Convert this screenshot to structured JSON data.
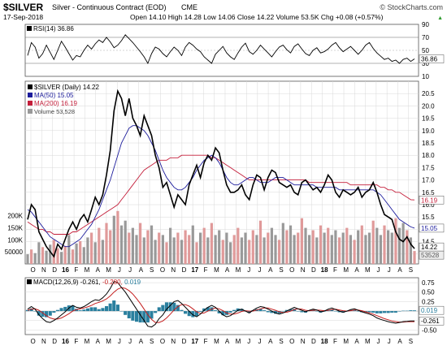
{
  "header": {
    "symbol": "$SILVER",
    "name": "Silver - Continuous Contract (EOD)",
    "exchange": "CME",
    "brand": "© StockCharts.com",
    "date": "17-Sep-2018",
    "ohlc": "Open 14.10  High 14.28  Low 14.06  Close 14.22  Volume 53.5K  Chg +0.08 (+0.57%)",
    "chg_arrow": "▲"
  },
  "colors": {
    "price": "#000000",
    "ma50": "#1c1c9c",
    "ma200": "#c41e3a",
    "macd": "#000000",
    "signal": "#c41e1e",
    "histogram": "#2a7f9e",
    "volume_up": "#e09a9a",
    "volume_down": "#999999",
    "grid": "#d8d8d8"
  },
  "chart_data": [
    {
      "type": "line",
      "panel": "RSI",
      "legend": "RSI(14) 36.86",
      "last_value": 36.86,
      "ylim": [
        10,
        90
      ],
      "levels": [
        30,
        50,
        70
      ],
      "tick_labels": [
        "90",
        "70",
        "50",
        "30",
        "10"
      ],
      "tick_values": [
        90,
        70,
        50,
        30,
        10
      ],
      "values": [
        42,
        62,
        55,
        38,
        45,
        58,
        47,
        36,
        50,
        64,
        55,
        45,
        35,
        42,
        40,
        50,
        58,
        52,
        60,
        66,
        62,
        70,
        63,
        54,
        58,
        65,
        74,
        68,
        62,
        55,
        48,
        40,
        30,
        45,
        55,
        52,
        45,
        40,
        48,
        55,
        50,
        42,
        55,
        62,
        58,
        52,
        48,
        40,
        35,
        30,
        44,
        50,
        56,
        46,
        40,
        36,
        46,
        55,
        61,
        48,
        44,
        50,
        58,
        52,
        46,
        40,
        48,
        55,
        58,
        51,
        46,
        56,
        60,
        52,
        45,
        42,
        50,
        54,
        46,
        48,
        52,
        58,
        62,
        54,
        48,
        52,
        56,
        50,
        44,
        50,
        58,
        62,
        53,
        46,
        41,
        36,
        38,
        33,
        35,
        30,
        36,
        38,
        33,
        36.86
      ]
    },
    {
      "type": "line",
      "panel": "Price",
      "legend": [
        "$SILVER (Daily) 14.22",
        "MA(50) 15.05",
        "MA(200) 16.19",
        "Volume 53,528"
      ],
      "ylim": [
        13.6,
        21.0
      ],
      "y_ticks": [
        14.0,
        14.5,
        15.0,
        15.5,
        16.0,
        16.5,
        17.0,
        17.5,
        18.0,
        18.5,
        19.0,
        19.5,
        20.0,
        20.5
      ],
      "y_tick_labels": [
        "14.0",
        "14.5",
        "15.0",
        "15.5",
        "16.0",
        "16.5",
        "17.0",
        "17.5",
        "18.0",
        "18.5",
        "19.0",
        "19.5",
        "20.0",
        "20.5"
      ],
      "volume_ticks": [
        "200K",
        "150K",
        "100K",
        "50000"
      ],
      "volume_tick_values": [
        200000,
        150000,
        100000,
        50000
      ],
      "volume_max": 270000,
      "last_labels": {
        "ma200": "16.19",
        "ma50": "15.05",
        "close": "14.22",
        "volume": "53528"
      },
      "x_labels": [
        "O",
        "N",
        "D",
        "16",
        "F",
        "M",
        "A",
        "M",
        "J",
        "J",
        "A",
        "S",
        "O",
        "N",
        "D",
        "17",
        "F",
        "M",
        "A",
        "M",
        "J",
        "J",
        "A",
        "S",
        "O",
        "N",
        "D",
        "18",
        "F",
        "M",
        "A",
        "M",
        "J",
        "J",
        "A",
        "S"
      ],
      "x_label_bold": [
        "16",
        "17",
        "18"
      ],
      "series": [
        {
          "name": "$SILVER (Daily)",
          "values": [
            15.4,
            16.0,
            15.8,
            14.9,
            14.6,
            14.3,
            14.1,
            13.9,
            14.4,
            14.2,
            14.6,
            15.0,
            15.3,
            15.0,
            15.4,
            15.6,
            15.3,
            15.8,
            16.3,
            16.0,
            16.4,
            17.2,
            18.2,
            19.8,
            20.6,
            20.3,
            19.6,
            20.3,
            19.5,
            19.2,
            18.8,
            19.6,
            19.2,
            18.8,
            18.0,
            17.5,
            16.7,
            16.9,
            16.4,
            15.9,
            16.4,
            16.2,
            16.0,
            16.8,
            17.2,
            17.6,
            17.1,
            17.7,
            18.0,
            17.8,
            18.3,
            18.1,
            17.4,
            16.8,
            16.5,
            16.5,
            16.6,
            16.8,
            16.4,
            16.2,
            16.8,
            17.2,
            17.1,
            16.6,
            17.1,
            17.4,
            17.3,
            16.9,
            16.8,
            16.7,
            16.8,
            16.5,
            16.4,
            16.9,
            17.0,
            16.8,
            16.6,
            16.7,
            16.5,
            16.8,
            17.2,
            17.0,
            16.5,
            16.3,
            16.6,
            16.5,
            16.4,
            16.5,
            16.7,
            16.3,
            16.5,
            16.6,
            16.9,
            16.5,
            16.0,
            15.6,
            15.5,
            15.4,
            14.9,
            14.6,
            14.5,
            14.7,
            14.4,
            14.22
          ]
        },
        {
          "name": "MA(50)",
          "values": [
            15.8,
            15.7,
            15.5,
            15.3,
            15.1,
            14.9,
            14.7,
            14.6,
            14.5,
            14.4,
            14.3,
            14.3,
            14.4,
            14.5,
            14.6,
            14.8,
            15.0,
            15.2,
            15.5,
            15.8,
            16.2,
            16.6,
            17.0,
            17.5,
            18.0,
            18.5,
            18.8,
            19.1,
            19.2,
            19.2,
            19.1,
            19.0,
            18.8,
            18.5,
            18.2,
            17.8,
            17.4,
            17.1,
            16.9,
            16.7,
            16.6,
            16.6,
            16.7,
            16.9,
            17.1,
            17.4,
            17.6,
            17.8,
            17.9,
            18.0,
            17.9,
            17.7,
            17.4,
            17.1,
            16.9,
            16.8,
            16.8,
            16.9,
            17.0,
            17.1,
            17.1,
            17.0,
            16.9,
            16.9,
            16.9,
            17.0,
            17.1,
            17.1,
            17.1,
            17.0,
            16.9,
            16.8,
            16.8,
            16.8,
            16.8,
            16.8,
            16.8,
            16.7,
            16.7,
            16.7,
            16.7,
            16.7,
            16.7,
            16.6,
            16.6,
            16.6,
            16.6,
            16.6,
            16.6,
            16.6,
            16.6,
            16.6,
            16.6,
            16.5,
            16.4,
            16.2,
            16.0,
            15.8,
            15.6,
            15.4,
            15.3,
            15.2,
            15.1,
            15.05
          ]
        },
        {
          "name": "MA(200)",
          "values": [
            15.3,
            15.2,
            15.1,
            15.0,
            15.0,
            14.9,
            14.9,
            14.8,
            14.8,
            14.8,
            14.8,
            14.8,
            14.9,
            14.9,
            15.0,
            15.1,
            15.2,
            15.3,
            15.4,
            15.5,
            15.6,
            15.7,
            15.8,
            15.9,
            16.0,
            16.2,
            16.4,
            16.6,
            16.8,
            17.0,
            17.2,
            17.4,
            17.5,
            17.6,
            17.7,
            17.8,
            17.8,
            17.8,
            17.9,
            17.9,
            17.9,
            18.0,
            18.0,
            18.0,
            18.0,
            18.0,
            18.0,
            18.0,
            18.0,
            17.9,
            17.9,
            17.8,
            17.7,
            17.6,
            17.5,
            17.4,
            17.3,
            17.2,
            17.1,
            17.0,
            17.0,
            17.0,
            17.0,
            17.0,
            17.0,
            17.0,
            17.0,
            17.0,
            17.0,
            17.0,
            17.0,
            17.0,
            17.0,
            17.0,
            17.0,
            16.9,
            16.9,
            16.9,
            16.9,
            16.9,
            16.9,
            16.9,
            16.9,
            16.9,
            16.9,
            16.9,
            16.8,
            16.8,
            16.8,
            16.8,
            16.8,
            16.8,
            16.8,
            16.8,
            16.7,
            16.7,
            16.6,
            16.6,
            16.5,
            16.5,
            16.4,
            16.3,
            16.2,
            16.19
          ]
        }
      ],
      "volume": [
        40000,
        60000,
        45000,
        90000,
        70000,
        55000,
        80000,
        100000,
        65000,
        50000,
        75000,
        120000,
        60000,
        85000,
        95000,
        70000,
        110000,
        130000,
        90000,
        150000,
        100000,
        170000,
        140000,
        200000,
        220000,
        160000,
        180000,
        130000,
        150000,
        120000,
        170000,
        110000,
        140000,
        160000,
        100000,
        130000,
        120000,
        90000,
        150000,
        110000,
        130000,
        100000,
        140000,
        120000,
        160000,
        90000,
        130000,
        150000,
        110000,
        170000,
        120000,
        140000,
        100000,
        130000,
        90000,
        120000,
        150000,
        110000,
        130000,
        100000,
        140000,
        120000,
        180000,
        110000,
        130000,
        150000,
        120000,
        100000,
        170000,
        140000,
        160000,
        120000,
        130000,
        190000,
        150000,
        120000,
        140000,
        110000,
        160000,
        130000,
        150000,
        120000,
        140000,
        110000,
        130000,
        150000,
        120000,
        100000,
        140000,
        160000,
        120000,
        130000,
        180000,
        150000,
        120000,
        160000,
        140000,
        130000,
        190000,
        150000,
        170000,
        140000,
        110000,
        53528
      ],
      "volume_down": [
        1,
        0,
        1,
        1,
        0,
        1,
        1,
        0,
        0,
        1,
        0,
        1,
        0,
        1,
        0,
        1,
        1,
        0,
        1,
        0,
        1,
        0,
        0,
        1,
        0,
        1,
        1,
        0,
        1,
        1,
        0,
        1,
        0,
        1,
        1,
        0,
        1,
        0,
        1,
        1,
        0,
        1,
        0,
        0,
        1,
        0,
        1,
        0,
        1,
        0,
        1,
        1,
        0,
        1,
        1,
        0,
        0,
        1,
        1,
        0,
        0,
        1,
        0,
        1,
        0,
        1,
        1,
        0,
        1,
        0,
        1,
        1,
        0,
        0,
        1,
        1,
        0,
        1,
        0,
        1,
        0,
        1,
        1,
        0,
        1,
        0,
        1,
        0,
        1,
        0,
        1,
        1,
        0,
        1,
        1,
        0,
        1,
        1,
        0,
        1,
        1,
        0,
        1,
        0
      ]
    },
    {
      "type": "line",
      "panel": "MACD",
      "legend_prefix": "MACD(12,26,9) -0.261,",
      "legend_signal": "-0.280,",
      "legend_hist": "0.019",
      "ylim": [
        -0.62,
        0.88
      ],
      "y_ticks": [
        0.75,
        0.5,
        0.25,
        0.0,
        -0.25,
        -0.5
      ],
      "y_tick_labels": [
        "0.75",
        "0.50",
        "0.25",
        "0.00",
        "-0.25",
        "-0.50"
      ],
      "last_labels": {
        "histogram": "0.019",
        "macd": "-0.261"
      },
      "x_labels": [
        "O",
        "N",
        "D",
        "16",
        "F",
        "M",
        "A",
        "M",
        "J",
        "J",
        "A",
        "S",
        "O",
        "N",
        "D",
        "17",
        "F",
        "M",
        "A",
        "M",
        "J",
        "J",
        "A",
        "S",
        "O",
        "N",
        "D",
        "18",
        "F",
        "M",
        "A",
        "M",
        "J",
        "J",
        "A",
        "S"
      ],
      "x_label_bold": [
        "16",
        "17",
        "18"
      ],
      "series": [
        {
          "name": "MACD(12,26,9)",
          "values": [
            0.05,
            0.12,
            0.05,
            -0.1,
            -0.2,
            -0.28,
            -0.3,
            -0.25,
            -0.18,
            -0.1,
            -0.02,
            0.08,
            0.15,
            0.1,
            0.08,
            0.12,
            0.18,
            0.25,
            0.3,
            0.28,
            0.35,
            0.45,
            0.6,
            0.78,
            0.75,
            0.62,
            0.5,
            0.35,
            0.2,
            0.05,
            -0.1,
            -0.25,
            -0.4,
            -0.42,
            -0.35,
            -0.2,
            -0.1,
            0.05,
            0.15,
            0.25,
            0.28,
            0.2,
            0.1,
            0.0,
            -0.1,
            -0.15,
            -0.08,
            0.02,
            0.1,
            0.15,
            0.1,
            0.0,
            -0.1,
            -0.15,
            -0.12,
            -0.05,
            0.02,
            0.05,
            0.0,
            -0.05,
            0.02,
            0.08,
            0.12,
            0.1,
            0.05,
            0.0,
            -0.05,
            -0.08,
            -0.05,
            0.0,
            0.05,
            0.1,
            0.06,
            0.02,
            -0.02,
            0.02,
            0.05,
            0.03,
            -0.02,
            0.0,
            0.05,
            0.08,
            0.04,
            0.0,
            -0.03,
            0.0,
            0.04,
            0.06,
            0.02,
            -0.02,
            -0.05,
            -0.08,
            -0.12,
            -0.18,
            -0.22,
            -0.25,
            -0.28,
            -0.3,
            -0.32,
            -0.3,
            -0.28,
            -0.27,
            -0.26,
            -0.261
          ]
        },
        {
          "name": "Signal",
          "values": [
            0.02,
            0.05,
            0.06,
            0.02,
            -0.05,
            -0.12,
            -0.18,
            -0.21,
            -0.21,
            -0.18,
            -0.13,
            -0.07,
            0.0,
            0.04,
            0.06,
            0.08,
            0.11,
            0.15,
            0.2,
            0.23,
            0.27,
            0.32,
            0.4,
            0.5,
            0.58,
            0.62,
            0.6,
            0.54,
            0.45,
            0.33,
            0.2,
            0.05,
            -0.1,
            -0.22,
            -0.3,
            -0.3,
            -0.26,
            -0.18,
            -0.08,
            0.03,
            0.12,
            0.17,
            0.17,
            0.13,
            0.06,
            -0.02,
            -0.06,
            -0.05,
            0.0,
            0.05,
            0.08,
            0.06,
            0.01,
            -0.05,
            -0.08,
            -0.08,
            -0.05,
            -0.01,
            0.01,
            0.0,
            0.0,
            0.03,
            0.06,
            0.08,
            0.08,
            0.05,
            0.02,
            -0.02,
            -0.04,
            -0.03,
            0.0,
            0.04,
            0.06,
            0.05,
            0.02,
            0.01,
            0.02,
            0.03,
            0.02,
            0.01,
            0.02,
            0.04,
            0.05,
            0.03,
            0.01,
            0.0,
            0.01,
            0.03,
            0.03,
            0.01,
            -0.02,
            -0.05,
            -0.08,
            -0.12,
            -0.16,
            -0.2,
            -0.23,
            -0.26,
            -0.28,
            -0.29,
            -0.29,
            -0.28,
            -0.28,
            -0.28
          ]
        }
      ]
    }
  ]
}
